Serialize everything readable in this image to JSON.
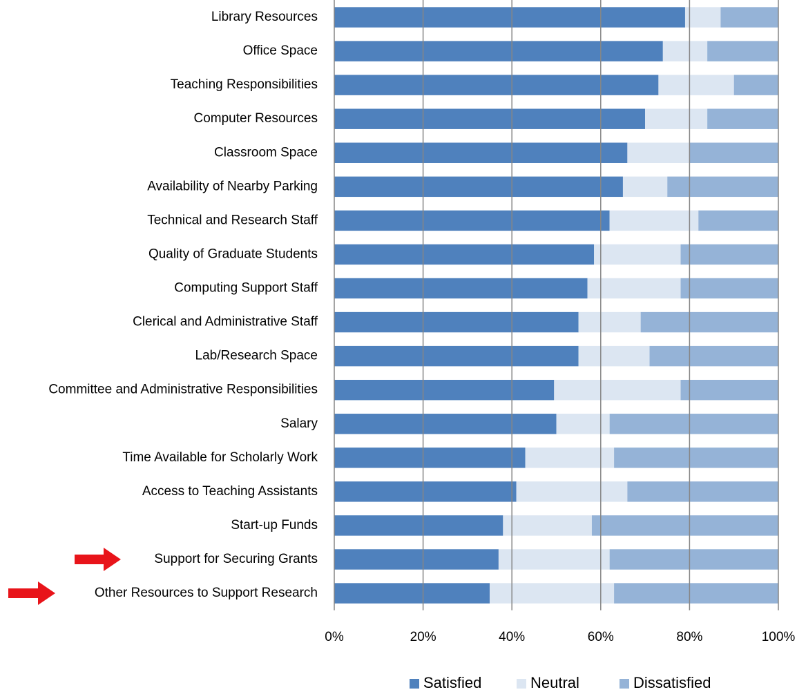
{
  "chart_data": {
    "type": "stacked_bar_horizontal",
    "categories": [
      "Library Resources",
      "Office Space",
      "Teaching Responsibilities",
      "Computer Resources",
      "Classroom Space",
      "Availability of Nearby Parking",
      "Technical and Research Staff",
      "Quality of Graduate Students",
      "Computing Support Staff",
      "Clerical and Administrative Staff",
      "Lab/Research Space",
      "Committee and Administrative Responsibilities",
      "Salary",
      "Time Available for Scholarly Work",
      "Access to Teaching Assistants",
      "Start-up Funds",
      "Support for Securing Grants",
      "Other Resources to Support Research"
    ],
    "series": [
      {
        "name": "Satisfied",
        "color": "#4f81bd",
        "values": [
          79,
          74,
          73,
          70,
          66,
          65,
          62,
          58.5,
          57,
          55,
          55,
          49.5,
          50,
          43,
          41,
          38,
          37,
          35
        ]
      },
      {
        "name": "Neutral",
        "color": "#dce6f2",
        "values": [
          8,
          10,
          17,
          14,
          14,
          10,
          20,
          19.5,
          21,
          14,
          16,
          28.5,
          12,
          20,
          25,
          20,
          25,
          28
        ]
      },
      {
        "name": "Dissatisfied",
        "color": "#95b3d7",
        "values": [
          13,
          16,
          10,
          16,
          20,
          25,
          18,
          22,
          22,
          31,
          29,
          22,
          38,
          37,
          34,
          42,
          38,
          37
        ]
      }
    ],
    "xlim": [
      0,
      100
    ],
    "xticks": [
      {
        "value": 0,
        "label": "0%"
      },
      {
        "value": 20,
        "label": "20%"
      },
      {
        "value": 40,
        "label": "40%"
      },
      {
        "value": 60,
        "label": "60%"
      },
      {
        "value": 80,
        "label": "80%"
      },
      {
        "value": 100,
        "label": "100%"
      }
    ],
    "grid": true
  }
}
